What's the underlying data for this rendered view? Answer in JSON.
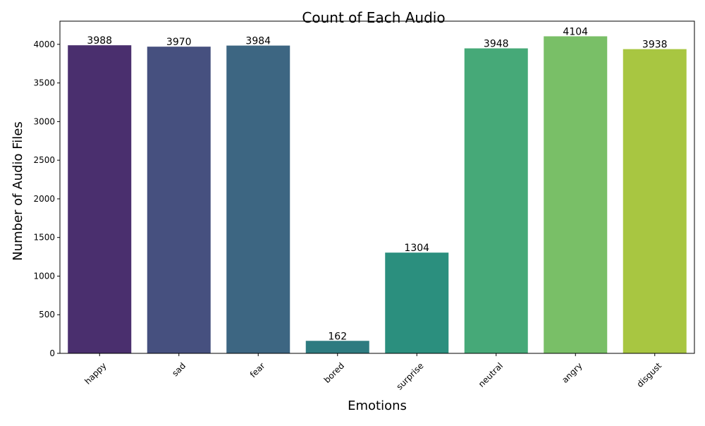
{
  "chart_data": {
    "type": "bar",
    "title": "Count of Each Audio",
    "xlabel": "Emotions",
    "ylabel": "Number of Audio Files",
    "categories": [
      "happy",
      "sad",
      "fear",
      "bored",
      "surprise",
      "neutral",
      "angry",
      "disgust"
    ],
    "values": [
      3988,
      3970,
      3984,
      162,
      1304,
      3948,
      4104,
      3938
    ],
    "colors": [
      "#4a2f6e",
      "#46507f",
      "#3d6682",
      "#2e7b80",
      "#2b8f7e",
      "#46a978",
      "#79bf67",
      "#a8c641"
    ],
    "ylim": [
      0,
      4300
    ],
    "yticks": [
      0,
      500,
      1000,
      1500,
      2000,
      2500,
      3000,
      3500,
      4000
    ],
    "grid": false,
    "legend": "none"
  }
}
